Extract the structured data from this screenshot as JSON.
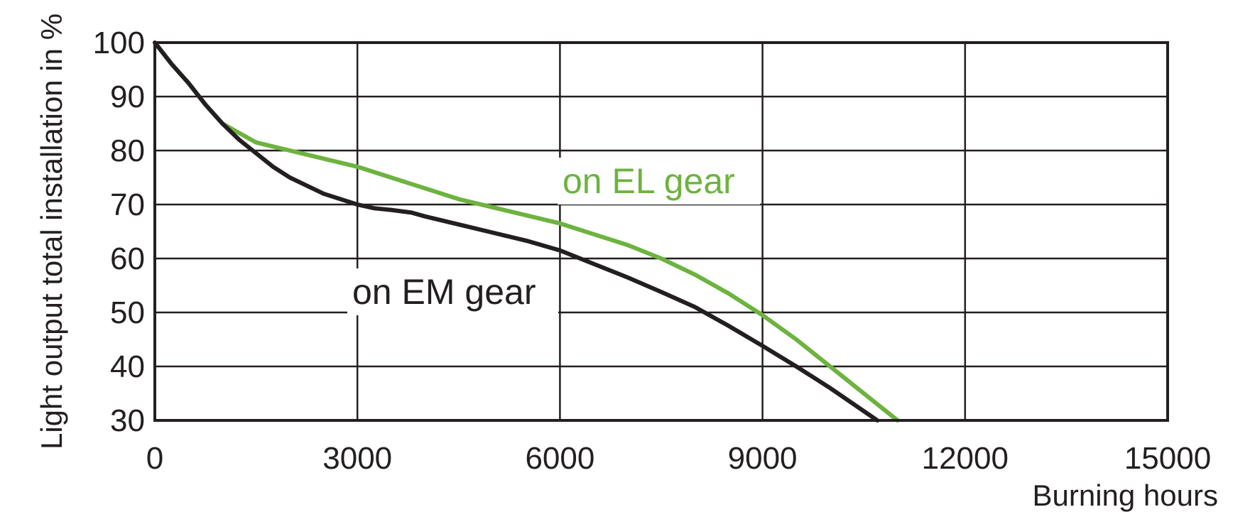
{
  "chart_data": {
    "type": "line",
    "title": "",
    "xlabel": "Burning hours",
    "ylabel": "Light output total installation in %",
    "xlim": [
      0,
      15000
    ],
    "ylim": [
      30,
      100
    ],
    "xticks": [
      "0",
      "3000",
      "6000",
      "9000",
      "12000",
      "15000"
    ],
    "yticks": [
      "100",
      "90",
      "80",
      "70",
      "60",
      "50",
      "40",
      "30"
    ],
    "grid": true,
    "series": [
      {
        "name": "on EL gear",
        "color": "#6db33f",
        "x": [
          0,
          250,
          500,
          750,
          1000,
          1500,
          2000,
          2500,
          3000,
          3500,
          4000,
          4500,
          5000,
          5500,
          6000,
          6500,
          7000,
          7500,
          8000,
          8500,
          9000,
          9500,
          10000,
          10500,
          11000
        ],
        "y": [
          100,
          96,
          92.5,
          88.5,
          85,
          81.5,
          80,
          78.5,
          77,
          75,
          73,
          71,
          69.5,
          68,
          66.5,
          64.5,
          62.5,
          60,
          57,
          53.5,
          49.5,
          45,
          40,
          35,
          30
        ]
      },
      {
        "name": "on EM gear",
        "color": "#231f20",
        "x": [
          0,
          250,
          500,
          750,
          1000,
          1250,
          1500,
          1750,
          2000,
          2500,
          3000,
          3250,
          3500,
          3800,
          4000,
          4500,
          5000,
          5500,
          6000,
          6500,
          7000,
          7500,
          8000,
          8500,
          9000,
          9500,
          10000,
          10700
        ],
        "y": [
          100,
          96,
          92.5,
          88.5,
          85,
          82,
          79.5,
          77,
          75,
          72,
          70,
          69.3,
          69,
          68.5,
          67.8,
          66.3,
          64.8,
          63.3,
          61.5,
          59,
          56.5,
          53.8,
          51,
          47.5,
          43.8,
          40,
          36,
          30
        ]
      }
    ]
  }
}
